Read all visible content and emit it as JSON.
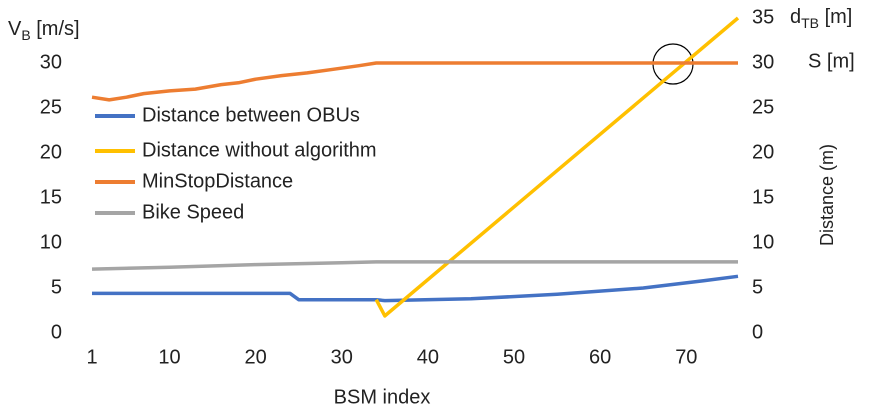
{
  "chart_data": {
    "type": "line",
    "ylabel": [
      "V",
      "B",
      " [m/s]"
    ],
    "y2label": [
      "d",
      "TB",
      " [m]"
    ],
    "y2label2": "S [m]",
    "y2title": "Distance (m)",
    "xlabel": "BSM index",
    "xlim": [
      1,
      76
    ],
    "xticks": [
      1,
      10,
      20,
      30,
      40,
      50,
      60,
      70
    ],
    "ylim": [
      0,
      35
    ],
    "yticks": [
      0,
      5,
      10,
      15,
      20,
      25,
      30
    ],
    "y2lim": [
      0,
      35
    ],
    "y2ticks": [
      0,
      5,
      10,
      15,
      20,
      25,
      30,
      35
    ],
    "grid": false,
    "legend": "upper left",
    "series": [
      {
        "name": "Distance between OBUs",
        "color": "#4472c4",
        "axis": "y2",
        "x": [
          1,
          24,
          25,
          34,
          35,
          45,
          55,
          65,
          72,
          76
        ],
        "values": [
          4.4,
          4.4,
          3.7,
          3.7,
          3.6,
          3.8,
          4.3,
          5.0,
          5.8,
          6.3
        ]
      },
      {
        "name": "Distance without algorithm",
        "color": "#ffc000",
        "axis": "y2",
        "x": [
          34,
          35,
          76
        ],
        "values": [
          3.7,
          1.9,
          35
        ]
      },
      {
        "name": "MinStopDistance",
        "color": "#ed7d31",
        "axis": "y2",
        "x": [
          1,
          3,
          5,
          7,
          10,
          13,
          16,
          18,
          20,
          23,
          26,
          29,
          32,
          34,
          76
        ],
        "values": [
          26.2,
          25.9,
          26.2,
          26.6,
          26.9,
          27.1,
          27.6,
          27.8,
          28.2,
          28.6,
          28.9,
          29.3,
          29.7,
          30,
          30
        ]
      },
      {
        "name": "Bike Speed",
        "color": "#a5a5a5",
        "axis": "y",
        "x": [
          1,
          10,
          20,
          30,
          34,
          76
        ],
        "values": [
          7.1,
          7.3,
          7.6,
          7.8,
          7.9,
          7.9
        ]
      }
    ]
  }
}
